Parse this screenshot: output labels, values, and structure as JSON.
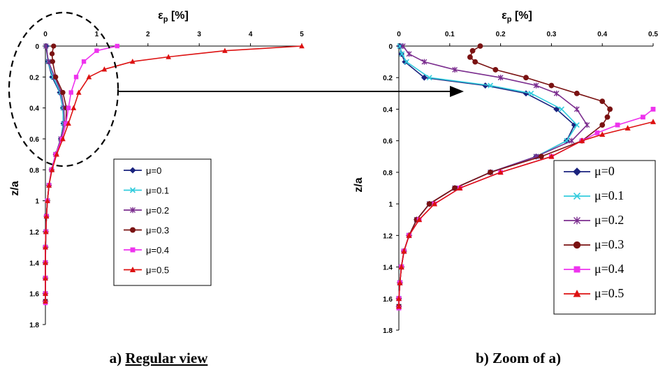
{
  "chart_data": [
    {
      "id": "a",
      "type": "line",
      "xlabel": "εp [%]",
      "ylabel": "z/a",
      "xlim": [
        0,
        5
      ],
      "ylim": [
        0,
        1.8
      ],
      "x_ticks": [
        "0",
        "1",
        "2",
        "3",
        "4",
        "5"
      ],
      "y_ticks": [
        "0",
        "0.2",
        "0.4",
        "0.6",
        "0.8",
        "1",
        "1.2",
        "1.4",
        "1.6",
        "1.8"
      ],
      "y_inverted": true,
      "caption": "a) Regular view",
      "legend_position": "right",
      "series": [
        {
          "name": "μ=0",
          "color": "#1a237e",
          "marker": "diamond",
          "points": [
            [
              0.02,
              0
            ],
            [
              0.05,
              0.1
            ],
            [
              0.13,
              0.2
            ],
            [
              0.28,
              0.3
            ],
            [
              0.34,
              0.4
            ],
            [
              0.35,
              0.5
            ],
            [
              0.3,
              0.6
            ],
            [
              0.2,
              0.7
            ],
            [
              0.12,
              0.8
            ],
            [
              0.07,
              0.9
            ],
            [
              0.04,
              1.0
            ],
            [
              0.02,
              1.1
            ],
            [
              0.01,
              1.2
            ],
            [
              0.005,
              1.3
            ],
            [
              0,
              1.4
            ],
            [
              0,
              1.5
            ],
            [
              0,
              1.6
            ],
            [
              0,
              1.65
            ]
          ]
        },
        {
          "name": "μ=0.1",
          "color": "#33ccdd",
          "marker": "x",
          "points": [
            [
              0.01,
              0
            ],
            [
              0.05,
              0.1
            ],
            [
              0.15,
              0.2
            ],
            [
              0.29,
              0.3
            ],
            [
              0.34,
              0.4
            ],
            [
              0.35,
              0.5
            ],
            [
              0.3,
              0.6
            ],
            [
              0.2,
              0.7
            ],
            [
              0.12,
              0.8
            ],
            [
              0.07,
              0.9
            ],
            [
              0.04,
              1.0
            ],
            [
              0.02,
              1.1
            ],
            [
              0.01,
              1.2
            ],
            [
              0,
              1.3
            ],
            [
              0,
              1.4
            ],
            [
              0,
              1.5
            ],
            [
              0,
              1.6
            ],
            [
              0,
              1.65
            ]
          ]
        },
        {
          "name": "μ=0.2",
          "color": "#7b2d8e",
          "marker": "star",
          "points": [
            [
              0.01,
              0
            ],
            [
              0.06,
              0.1
            ],
            [
              0.18,
              0.2
            ],
            [
              0.31,
              0.3
            ],
            [
              0.36,
              0.4
            ],
            [
              0.37,
              0.5
            ],
            [
              0.3,
              0.6
            ],
            [
              0.2,
              0.7
            ],
            [
              0.12,
              0.8
            ],
            [
              0.07,
              0.9
            ],
            [
              0.04,
              1.0
            ],
            [
              0.02,
              1.1
            ],
            [
              0.01,
              1.2
            ],
            [
              0,
              1.3
            ],
            [
              0,
              1.4
            ],
            [
              0,
              1.5
            ],
            [
              0,
              1.6
            ],
            [
              0,
              1.65
            ]
          ]
        },
        {
          "name": "μ=0.3",
          "color": "#7a1212",
          "marker": "circle",
          "points": [
            [
              0.16,
              0
            ],
            [
              0.13,
              0.05
            ],
            [
              0.14,
              0.1
            ],
            [
              0.2,
              0.2
            ],
            [
              0.34,
              0.3
            ],
            [
              0.41,
              0.4
            ],
            [
              0.4,
              0.5
            ],
            [
              0.32,
              0.6
            ],
            [
              0.2,
              0.7
            ],
            [
              0.12,
              0.8
            ],
            [
              0.07,
              0.9
            ],
            [
              0.04,
              1.0
            ],
            [
              0.02,
              1.1
            ],
            [
              0.01,
              1.2
            ],
            [
              0,
              1.3
            ],
            [
              0,
              1.4
            ],
            [
              0,
              1.5
            ],
            [
              0,
              1.6
            ],
            [
              0,
              1.65
            ]
          ]
        },
        {
          "name": "μ=0.4",
          "color": "#ee33ee",
          "marker": "square",
          "points": [
            [
              1.4,
              0
            ],
            [
              1.0,
              0.03
            ],
            [
              0.75,
              0.1
            ],
            [
              0.6,
              0.2
            ],
            [
              0.5,
              0.3
            ],
            [
              0.45,
              0.4
            ],
            [
              0.4,
              0.5
            ],
            [
              0.32,
              0.6
            ],
            [
              0.2,
              0.7
            ],
            [
              0.12,
              0.8
            ],
            [
              0.07,
              0.9
            ],
            [
              0.04,
              1.0
            ],
            [
              0.02,
              1.1
            ],
            [
              0.01,
              1.2
            ],
            [
              0,
              1.3
            ],
            [
              0,
              1.4
            ],
            [
              0,
              1.5
            ],
            [
              0,
              1.6
            ],
            [
              0,
              1.66
            ]
          ]
        },
        {
          "name": "μ=0.5",
          "color": "#dd1111",
          "marker": "triangle",
          "points": [
            [
              5.0,
              0
            ],
            [
              3.5,
              0.03
            ],
            [
              2.4,
              0.07
            ],
            [
              1.7,
              0.1
            ],
            [
              1.15,
              0.15
            ],
            [
              0.85,
              0.2
            ],
            [
              0.65,
              0.3
            ],
            [
              0.55,
              0.4
            ],
            [
              0.45,
              0.5
            ],
            [
              0.34,
              0.6
            ],
            [
              0.22,
              0.7
            ],
            [
              0.13,
              0.8
            ],
            [
              0.07,
              0.9
            ],
            [
              0.04,
              1.0
            ],
            [
              0.02,
              1.1
            ],
            [
              0.01,
              1.2
            ],
            [
              0,
              1.3
            ],
            [
              0,
              1.4
            ],
            [
              0,
              1.5
            ],
            [
              0,
              1.6
            ],
            [
              0,
              1.65
            ]
          ]
        }
      ]
    },
    {
      "id": "b",
      "type": "line",
      "xlabel": "εp [%]",
      "ylabel": "z/a",
      "xlim": [
        0,
        0.5
      ],
      "ylim": [
        0,
        1.8
      ],
      "x_ticks": [
        "0",
        "0.1",
        "0.2",
        "0.3",
        "0.4",
        "0.5"
      ],
      "y_ticks": [
        "0",
        "0.2",
        "0.4",
        "0.6",
        "0.8",
        "1",
        "1.2",
        "1.4",
        "1.6",
        "1.8"
      ],
      "y_inverted": true,
      "caption": "b) Zoom of a)",
      "legend_position": "bottom-right",
      "series": [
        {
          "name": "μ=0",
          "color": "#1a237e",
          "marker": "diamond",
          "points": [
            [
              0.002,
              0
            ],
            [
              0.005,
              0.05
            ],
            [
              0.012,
              0.1
            ],
            [
              0.05,
              0.2
            ],
            [
              0.17,
              0.25
            ],
            [
              0.25,
              0.3
            ],
            [
              0.31,
              0.4
            ],
            [
              0.345,
              0.5
            ],
            [
              0.33,
              0.6
            ],
            [
              0.27,
              0.7
            ],
            [
              0.18,
              0.8
            ],
            [
              0.11,
              0.9
            ],
            [
              0.06,
              1.0
            ],
            [
              0.035,
              1.1
            ],
            [
              0.02,
              1.2
            ],
            [
              0.01,
              1.3
            ],
            [
              0.005,
              1.4
            ],
            [
              0.002,
              1.5
            ],
            [
              0,
              1.6
            ],
            [
              0,
              1.65
            ]
          ]
        },
        {
          "name": "μ=0.1",
          "color": "#33ccdd",
          "marker": "x",
          "points": [
            [
              0.002,
              0
            ],
            [
              0.006,
              0.05
            ],
            [
              0.015,
              0.1
            ],
            [
              0.06,
              0.2
            ],
            [
              0.18,
              0.25
            ],
            [
              0.26,
              0.3
            ],
            [
              0.32,
              0.4
            ],
            [
              0.35,
              0.5
            ],
            [
              0.33,
              0.6
            ],
            [
              0.27,
              0.7
            ],
            [
              0.18,
              0.8
            ],
            [
              0.11,
              0.9
            ],
            [
              0.06,
              1.0
            ],
            [
              0.035,
              1.1
            ],
            [
              0.02,
              1.2
            ],
            [
              0.01,
              1.3
            ],
            [
              0.005,
              1.4
            ],
            [
              0.002,
              1.5
            ],
            [
              0,
              1.6
            ],
            [
              0,
              1.65
            ]
          ]
        },
        {
          "name": "μ=0.2",
          "color": "#7b2d8e",
          "marker": "star",
          "points": [
            [
              0.008,
              0
            ],
            [
              0.02,
              0.05
            ],
            [
              0.05,
              0.1
            ],
            [
              0.11,
              0.15
            ],
            [
              0.2,
              0.2
            ],
            [
              0.27,
              0.25
            ],
            [
              0.31,
              0.3
            ],
            [
              0.35,
              0.4
            ],
            [
              0.37,
              0.5
            ],
            [
              0.34,
              0.6
            ],
            [
              0.27,
              0.7
            ],
            [
              0.18,
              0.8
            ],
            [
              0.11,
              0.9
            ],
            [
              0.06,
              1.0
            ],
            [
              0.035,
              1.1
            ],
            [
              0.02,
              1.2
            ],
            [
              0.01,
              1.3
            ],
            [
              0.005,
              1.4
            ],
            [
              0.002,
              1.5
            ],
            [
              0,
              1.6
            ],
            [
              0,
              1.65
            ]
          ]
        },
        {
          "name": "μ=0.3",
          "color": "#7a1212",
          "marker": "circle",
          "points": [
            [
              0.16,
              0
            ],
            [
              0.145,
              0.03
            ],
            [
              0.14,
              0.07
            ],
            [
              0.15,
              0.1
            ],
            [
              0.19,
              0.15
            ],
            [
              0.25,
              0.2
            ],
            [
              0.3,
              0.25
            ],
            [
              0.35,
              0.3
            ],
            [
              0.4,
              0.35
            ],
            [
              0.415,
              0.4
            ],
            [
              0.41,
              0.45
            ],
            [
              0.4,
              0.5
            ],
            [
              0.36,
              0.6
            ],
            [
              0.28,
              0.7
            ],
            [
              0.18,
              0.8
            ],
            [
              0.11,
              0.9
            ],
            [
              0.06,
              1.0
            ],
            [
              0.035,
              1.1
            ],
            [
              0.02,
              1.2
            ],
            [
              0.01,
              1.3
            ],
            [
              0.005,
              1.4
            ],
            [
              0.002,
              1.5
            ],
            [
              0,
              1.6
            ],
            [
              0,
              1.65
            ]
          ]
        },
        {
          "name": "μ=0.4",
          "color": "#ee33ee",
          "marker": "square",
          "points": [
            [
              0.5,
              0.4
            ],
            [
              0.48,
              0.45
            ],
            [
              0.43,
              0.5
            ],
            [
              0.39,
              0.55
            ],
            [
              0.36,
              0.6
            ],
            [
              0.3,
              0.7
            ],
            [
              0.2,
              0.8
            ],
            [
              0.12,
              0.9
            ],
            [
              0.07,
              1.0
            ],
            [
              0.04,
              1.1
            ],
            [
              0.02,
              1.2
            ],
            [
              0.01,
              1.3
            ],
            [
              0.005,
              1.4
            ],
            [
              0.002,
              1.5
            ],
            [
              0,
              1.6
            ],
            [
              0,
              1.66
            ]
          ]
        },
        {
          "name": "μ=0.5",
          "color": "#dd1111",
          "marker": "triangle",
          "points": [
            [
              0.5,
              0.48
            ],
            [
              0.45,
              0.52
            ],
            [
              0.4,
              0.56
            ],
            [
              0.36,
              0.6
            ],
            [
              0.3,
              0.7
            ],
            [
              0.2,
              0.8
            ],
            [
              0.12,
              0.9
            ],
            [
              0.07,
              1.0
            ],
            [
              0.04,
              1.1
            ],
            [
              0.02,
              1.2
            ],
            [
              0.01,
              1.3
            ],
            [
              0.005,
              1.4
            ],
            [
              0.002,
              1.5
            ],
            [
              0,
              1.6
            ],
            [
              0,
              1.65
            ]
          ]
        }
      ]
    }
  ]
}
